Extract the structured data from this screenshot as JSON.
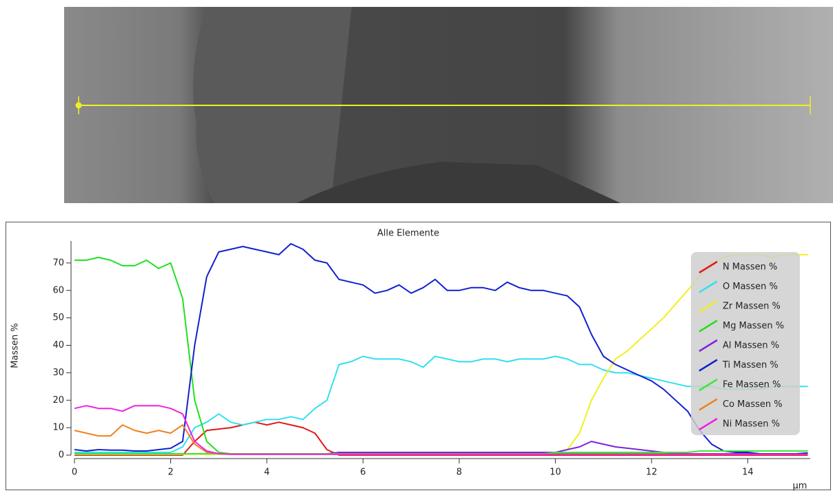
{
  "chart_data": {
    "type": "line",
    "title": "Alle Elemente",
    "y_label": "Massen %",
    "x_label": "µm",
    "xlim": [
      0,
      15.3
    ],
    "ylim": [
      0,
      78
    ],
    "xticks": [
      0,
      2,
      4,
      6,
      8,
      10,
      12,
      14
    ],
    "yticks": [
      0,
      10,
      20,
      30,
      40,
      50,
      60,
      70
    ],
    "x": [
      0,
      0.25,
      0.5,
      0.75,
      1,
      1.25,
      1.5,
      1.75,
      2,
      2.25,
      2.5,
      2.75,
      3,
      3.25,
      3.5,
      3.75,
      4,
      4.25,
      4.5,
      4.75,
      5,
      5.25,
      5.5,
      5.75,
      6,
      6.25,
      6.5,
      6.75,
      7,
      7.25,
      7.5,
      7.75,
      8,
      8.25,
      8.5,
      8.75,
      9,
      9.25,
      9.5,
      9.75,
      10,
      10.25,
      10.5,
      10.75,
      11,
      11.25,
      11.5,
      11.75,
      12,
      12.25,
      12.5,
      12.75,
      13,
      13.25,
      13.5,
      13.75,
      14,
      14.25,
      14.5,
      14.75,
      15,
      15.25
    ],
    "series": [
      {
        "name": "N Massen %",
        "color": "#e01818",
        "values": [
          0,
          0,
          0,
          0,
          0,
          0,
          0,
          0,
          0,
          0,
          5,
          9,
          9.5,
          10,
          11,
          12,
          11,
          12,
          11,
          10,
          8,
          2,
          0,
          0,
          0,
          0,
          0,
          0,
          0,
          0,
          0,
          0,
          0,
          0,
          0,
          0,
          0,
          0,
          0,
          0,
          0,
          0,
          0,
          0,
          0,
          0,
          0,
          0,
          0,
          0,
          0,
          0,
          0,
          0,
          0,
          0,
          0,
          0,
          0,
          0,
          0,
          0
        ]
      },
      {
        "name": "O Massen %",
        "color": "#30e0f0",
        "values": [
          1,
          1,
          1,
          1,
          1,
          1,
          1,
          1,
          1,
          3,
          10,
          12,
          15,
          12,
          11,
          12,
          13,
          13,
          14,
          13,
          17,
          20,
          33,
          34,
          36,
          35,
          35,
          35,
          34,
          32,
          36,
          35,
          34,
          34,
          35,
          35,
          34,
          35,
          35,
          35,
          36,
          35,
          33,
          33,
          31,
          30,
          30,
          29,
          28,
          27,
          26,
          25,
          25,
          25,
          24,
          24,
          24,
          24,
          25,
          25,
          25,
          25
        ]
      },
      {
        "name": "Zr Massen %",
        "color": "#f0f020",
        "values": [
          0.3,
          0.3,
          0.3,
          0.3,
          0.3,
          0.3,
          0.3,
          0.3,
          0.3,
          0.3,
          0.3,
          0.3,
          0.3,
          0.3,
          0.3,
          0.3,
          0.3,
          0.3,
          0.3,
          0.3,
          0.3,
          0.3,
          0.3,
          0.3,
          0.3,
          0.3,
          0.3,
          0.3,
          0.3,
          0.3,
          0.3,
          0.3,
          0.3,
          0.3,
          0.3,
          0.3,
          0.3,
          0.3,
          0.3,
          0.3,
          1,
          2,
          8,
          20,
          28,
          35,
          38,
          42,
          46,
          50,
          55,
          60,
          65,
          70,
          72,
          73,
          73,
          73,
          72,
          73,
          73,
          73
        ]
      },
      {
        "name": "Mg Massen %",
        "color": "#20e020",
        "values": [
          71,
          71,
          72,
          71,
          69,
          69,
          71,
          68,
          70,
          57,
          20,
          5,
          1,
          0.5,
          0.5,
          0.3,
          0.5,
          0.5,
          0.5,
          0.5,
          0.5,
          0.5,
          0.5,
          0.5,
          0.5,
          0.5,
          0.5,
          0.5,
          0.5,
          0.5,
          0.5,
          0.5,
          0.5,
          0.5,
          0.5,
          0.5,
          0.5,
          0.5,
          0.5,
          0.5,
          0.5,
          0.5,
          0.5,
          0.5,
          0.5,
          0.5,
          0.5,
          0.5,
          0.5,
          0.5,
          0.5,
          0.5,
          0.5,
          0.5,
          0.5,
          0.5,
          0.5,
          0.5,
          0.5,
          0.5,
          0.5,
          0.5
        ]
      },
      {
        "name": "Al Massen %",
        "color": "#8020e0",
        "values": [
          0.5,
          0.5,
          0.5,
          0.5,
          0.5,
          0.5,
          0.5,
          0.5,
          0.5,
          0.5,
          0.5,
          0.5,
          0.5,
          0.5,
          0.5,
          0.5,
          0.5,
          0.5,
          0.5,
          0.5,
          0.5,
          0.5,
          1,
          1,
          1,
          1,
          1,
          1,
          1,
          1,
          1,
          1,
          1,
          1,
          1,
          1,
          1,
          1,
          1,
          1,
          1,
          2,
          3,
          5,
          4,
          3,
          2.5,
          2,
          1.5,
          1,
          0.8,
          0.5,
          0.5,
          0.5,
          0.5,
          0.5,
          0.5,
          0.5,
          0.5,
          0.5,
          0.5,
          0.5
        ]
      },
      {
        "name": "Ti Massen %",
        "color": "#1020d0",
        "values": [
          2,
          1.5,
          2,
          1.8,
          1.8,
          1.5,
          1.5,
          2,
          2.5,
          5,
          40,
          65,
          74,
          75,
          76,
          75,
          74,
          73,
          77,
          75,
          71,
          70,
          64,
          63,
          62,
          59,
          60,
          62,
          59,
          61,
          64,
          60,
          60,
          61,
          61,
          60,
          63,
          61,
          60,
          60,
          59,
          58,
          54,
          44,
          36,
          33,
          31,
          29,
          27,
          24,
          20,
          16,
          9,
          4,
          1.5,
          1,
          1,
          0.5,
          0.5,
          0.5,
          0.5,
          0.8
        ]
      },
      {
        "name": "Fe Massen %",
        "color": "#38e838",
        "values": [
          0.5,
          0.5,
          0.5,
          0.5,
          0.5,
          0.5,
          0.5,
          0.5,
          0.5,
          0.5,
          0.5,
          0.5,
          0.5,
          0.5,
          0.5,
          0.5,
          0.5,
          0.5,
          0.5,
          0.5,
          0.5,
          0.5,
          0.5,
          0.5,
          0.5,
          0.5,
          0.5,
          0.5,
          0.5,
          0.5,
          0.5,
          0.5,
          0.5,
          0.5,
          0.5,
          0.5,
          0.5,
          0.5,
          0.5,
          0.5,
          1,
          1,
          1,
          1,
          1,
          1,
          1,
          1,
          1,
          1,
          1,
          1,
          1.5,
          1.5,
          1.5,
          1.5,
          1.5,
          1.5,
          1.5,
          1.5,
          1.5,
          1.5
        ]
      },
      {
        "name": "Co Massen %",
        "color": "#f08020",
        "values": [
          9,
          8,
          7,
          7,
          11,
          9,
          8,
          9,
          8,
          11,
          4,
          1,
          0.5,
          0.3,
          0.3,
          0.3,
          0.3,
          0.3,
          0.3,
          0.3,
          0.3,
          0.3,
          0.3,
          0.3,
          0.3,
          0.3,
          0.3,
          0.3,
          0.3,
          0.3,
          0.3,
          0.3,
          0.3,
          0.3,
          0.3,
          0.3,
          0.3,
          0.3,
          0.3,
          0.3,
          0.3,
          0.3,
          0.3,
          0.3,
          0.3,
          0.3,
          0.3,
          0.3,
          0.3,
          0.3,
          0.3,
          0.3,
          0.3,
          0.3,
          0.3,
          0.3,
          0.3,
          0.3,
          0.3,
          0.3,
          0.3,
          0.3
        ]
      },
      {
        "name": "Ni Massen %",
        "color": "#f020e0",
        "values": [
          17,
          18,
          17,
          17,
          16,
          18,
          18,
          18,
          17,
          15,
          5,
          1.5,
          0.5,
          0.3,
          0.3,
          0.3,
          0.3,
          0.3,
          0.3,
          0.3,
          0.3,
          0.3,
          0.3,
          0.3,
          0.3,
          0.3,
          0.3,
          0.3,
          0.3,
          0.3,
          0.3,
          0.3,
          0.3,
          0.3,
          0.3,
          0.3,
          0.3,
          0.3,
          0.3,
          0.3,
          0.3,
          0.3,
          0.3,
          0.3,
          0.3,
          0.3,
          0.3,
          0.3,
          0.3,
          0.3,
          0.3,
          0.3,
          0.3,
          0.3,
          0.3,
          0.3,
          0.3,
          0.3,
          0.3,
          0.3,
          0.3,
          0.3
        ]
      }
    ]
  }
}
